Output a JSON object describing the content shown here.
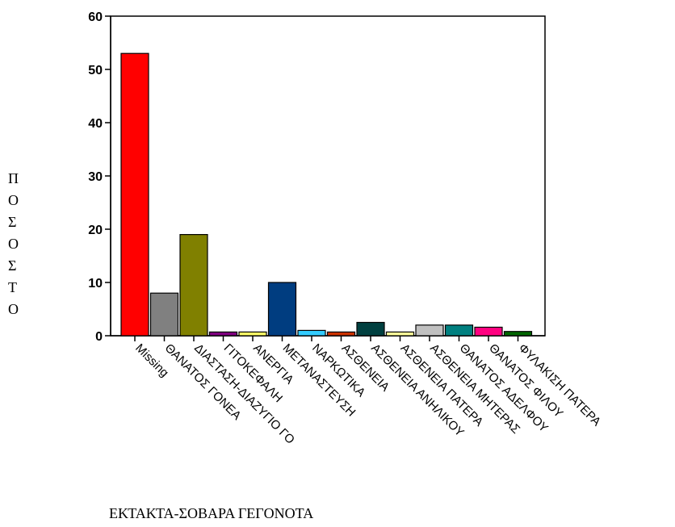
{
  "chart_data": {
    "type": "bar",
    "title": "",
    "xlabel": "ΕΚΤΑΚΤΑ-ΣΟΒΑΡΑ ΓΕΓΟΝΟΤΑ",
    "ylabel": "ΠΟΣΟΣΤΟ",
    "ylim": [
      0,
      60
    ],
    "yticks": [
      0,
      10,
      20,
      30,
      40,
      50,
      60
    ],
    "grid": false,
    "legend": "none",
    "categories": [
      "Missing",
      "ΘΑΝΑΤΟΣ ΓΟΝΕΑ",
      "ΔΙΑΣΤΑΣΗ-ΔΙΑΖΥΓΙΟ ΓΟ",
      "ΓΙΤΟΚΕΦΑΛΗ",
      "ΑΝΕΡΓΙΑ",
      "ΜΕΤΑΝΑΣΤΕΥΣΗ",
      "ΝΑΡΚΩΤΙΚΑ",
      "ΑΣΘΕΝΕΙΑ",
      "ΑΣΘΕΝΕΙΑ ΑΝΗΛΙΚΟΥ",
      "ΑΣΘΕΝΕΙΑ ΠΑΤΕΡΑ",
      "ΑΣΘΕΝΕΙΑ ΜΗΤΕΡΑΣ",
      "ΘΑΝΑΤΟΣ ΑΔΕΛΦΟΥ",
      "ΘΑΝΑΤΟΣ ΦΙΛΟΥ",
      "ΦΥΛΑΚΙΣΗ ΠΑΤΕΡΑ"
    ],
    "values": [
      53,
      8,
      19,
      0.7,
      0.7,
      10,
      1,
      0.7,
      2.5,
      0.7,
      2,
      2,
      1.6,
      0.8
    ],
    "colors": [
      "#ff0000",
      "#808080",
      "#808000",
      "#800080",
      "#ffff66",
      "#003d80",
      "#33ccff",
      "#cc3300",
      "#004040",
      "#ffff99",
      "#c0c0c0",
      "#008080",
      "#ff0080",
      "#006600"
    ]
  }
}
